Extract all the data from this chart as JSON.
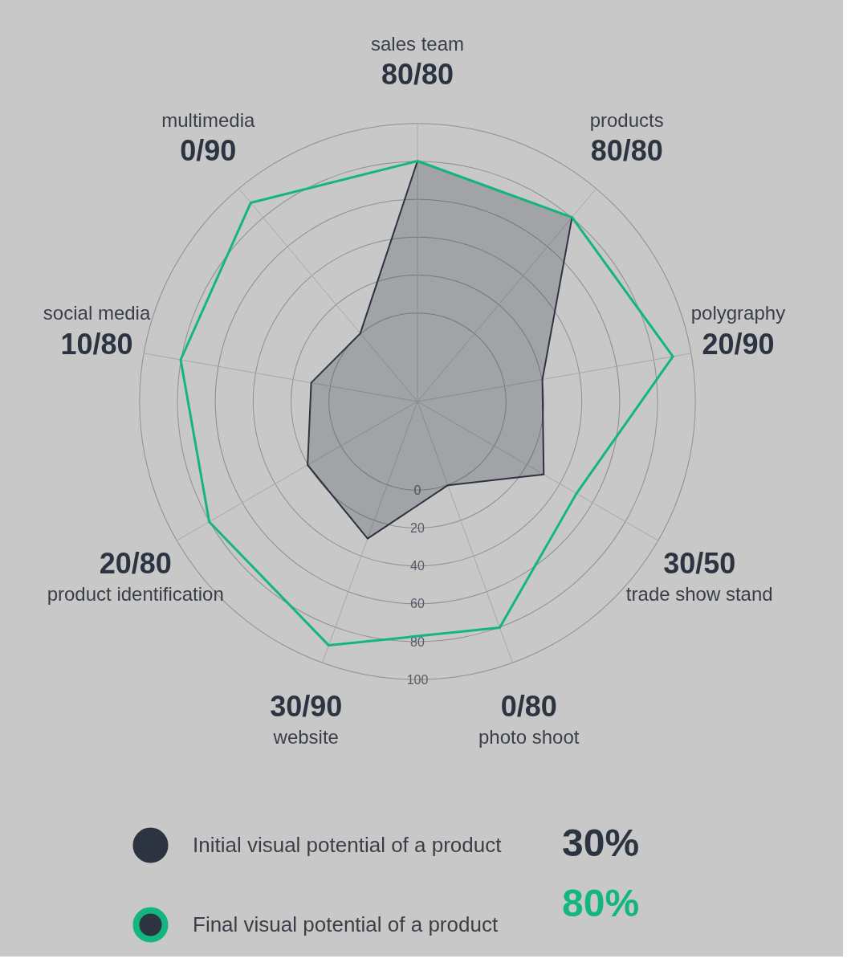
{
  "chart_data": {
    "type": "radar",
    "categories": [
      "sales team",
      "products",
      "polygraphy",
      "trade show stand",
      "photo shoot",
      "website",
      "product identification",
      "social media",
      "multimedia"
    ],
    "series": [
      {
        "name": "Initial visual potential of a product",
        "color": "#2d3441",
        "values": [
          80,
          80,
          20,
          30,
          0,
          30,
          20,
          10,
          0
        ]
      },
      {
        "name": "Final visual potential of a product",
        "color": "#12b67e",
        "values": [
          80,
          80,
          90,
          50,
          80,
          90,
          80,
          80,
          90
        ]
      }
    ],
    "ylim": [
      -47,
      100
    ],
    "yticks": [
      0,
      20,
      40,
      60,
      80,
      100
    ],
    "grid": true,
    "legend": "bottom left",
    "annotations": [
      "80/80",
      "80/80",
      "20/90",
      "30/50",
      "0/80",
      "30/90",
      "20/80",
      "10/80",
      "0/90",
      "30%",
      "80%"
    ]
  }
}
